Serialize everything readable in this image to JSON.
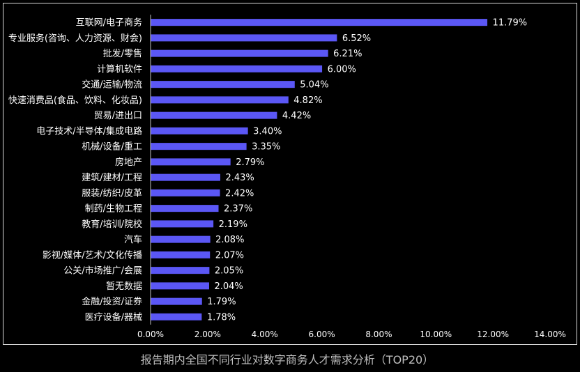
{
  "chart_data": {
    "type": "bar",
    "orientation": "horizontal",
    "title": "报告期内全国不同行业对数字商务人才需求分析（TOP20）",
    "xlabel": "",
    "ylabel": "",
    "xlim": [
      0,
      14
    ],
    "x_ticks": [
      "0.00%",
      "2.00%",
      "4.00%",
      "6.00%",
      "8.00%",
      "10.00%",
      "12.00%",
      "14.00%"
    ],
    "legend": "none",
    "grid": false,
    "bar_color": "#5b57f5",
    "categories": [
      "互联网/电子商务",
      "专业服务(咨询、人力资源、财会)",
      "批发/零售",
      "计算机软件",
      "交通/运输/物流",
      "快速消费品(食品、饮料、化妆品)",
      "贸易/进出口",
      "电子技术/半导体/集成电路",
      "机械/设备/重工",
      "房地产",
      "建筑/建材/工程",
      "服装/纺织/皮革",
      "制药/生物工程",
      "教育/培训/院校",
      "汽车",
      "影视/媒体/艺术/文化传播",
      "公关/市场推广/会展",
      "暂无数据",
      "金融/投资/证券",
      "医疗设备/器械"
    ],
    "values": [
      11.79,
      6.52,
      6.21,
      6.0,
      5.04,
      4.82,
      4.42,
      3.4,
      3.35,
      2.79,
      2.43,
      2.42,
      2.37,
      2.19,
      2.08,
      2.07,
      2.05,
      2.04,
      1.79,
      1.78
    ],
    "value_labels": [
      "11.79%",
      "6.52%",
      "6.21%",
      "6.00%",
      "5.04%",
      "4.82%",
      "4.42%",
      "3.40%",
      "3.35%",
      "2.79%",
      "2.43%",
      "2.42%",
      "2.37%",
      "2.19%",
      "2.08%",
      "2.07%",
      "2.05%",
      "2.04%",
      "1.79%",
      "1.78%"
    ]
  }
}
